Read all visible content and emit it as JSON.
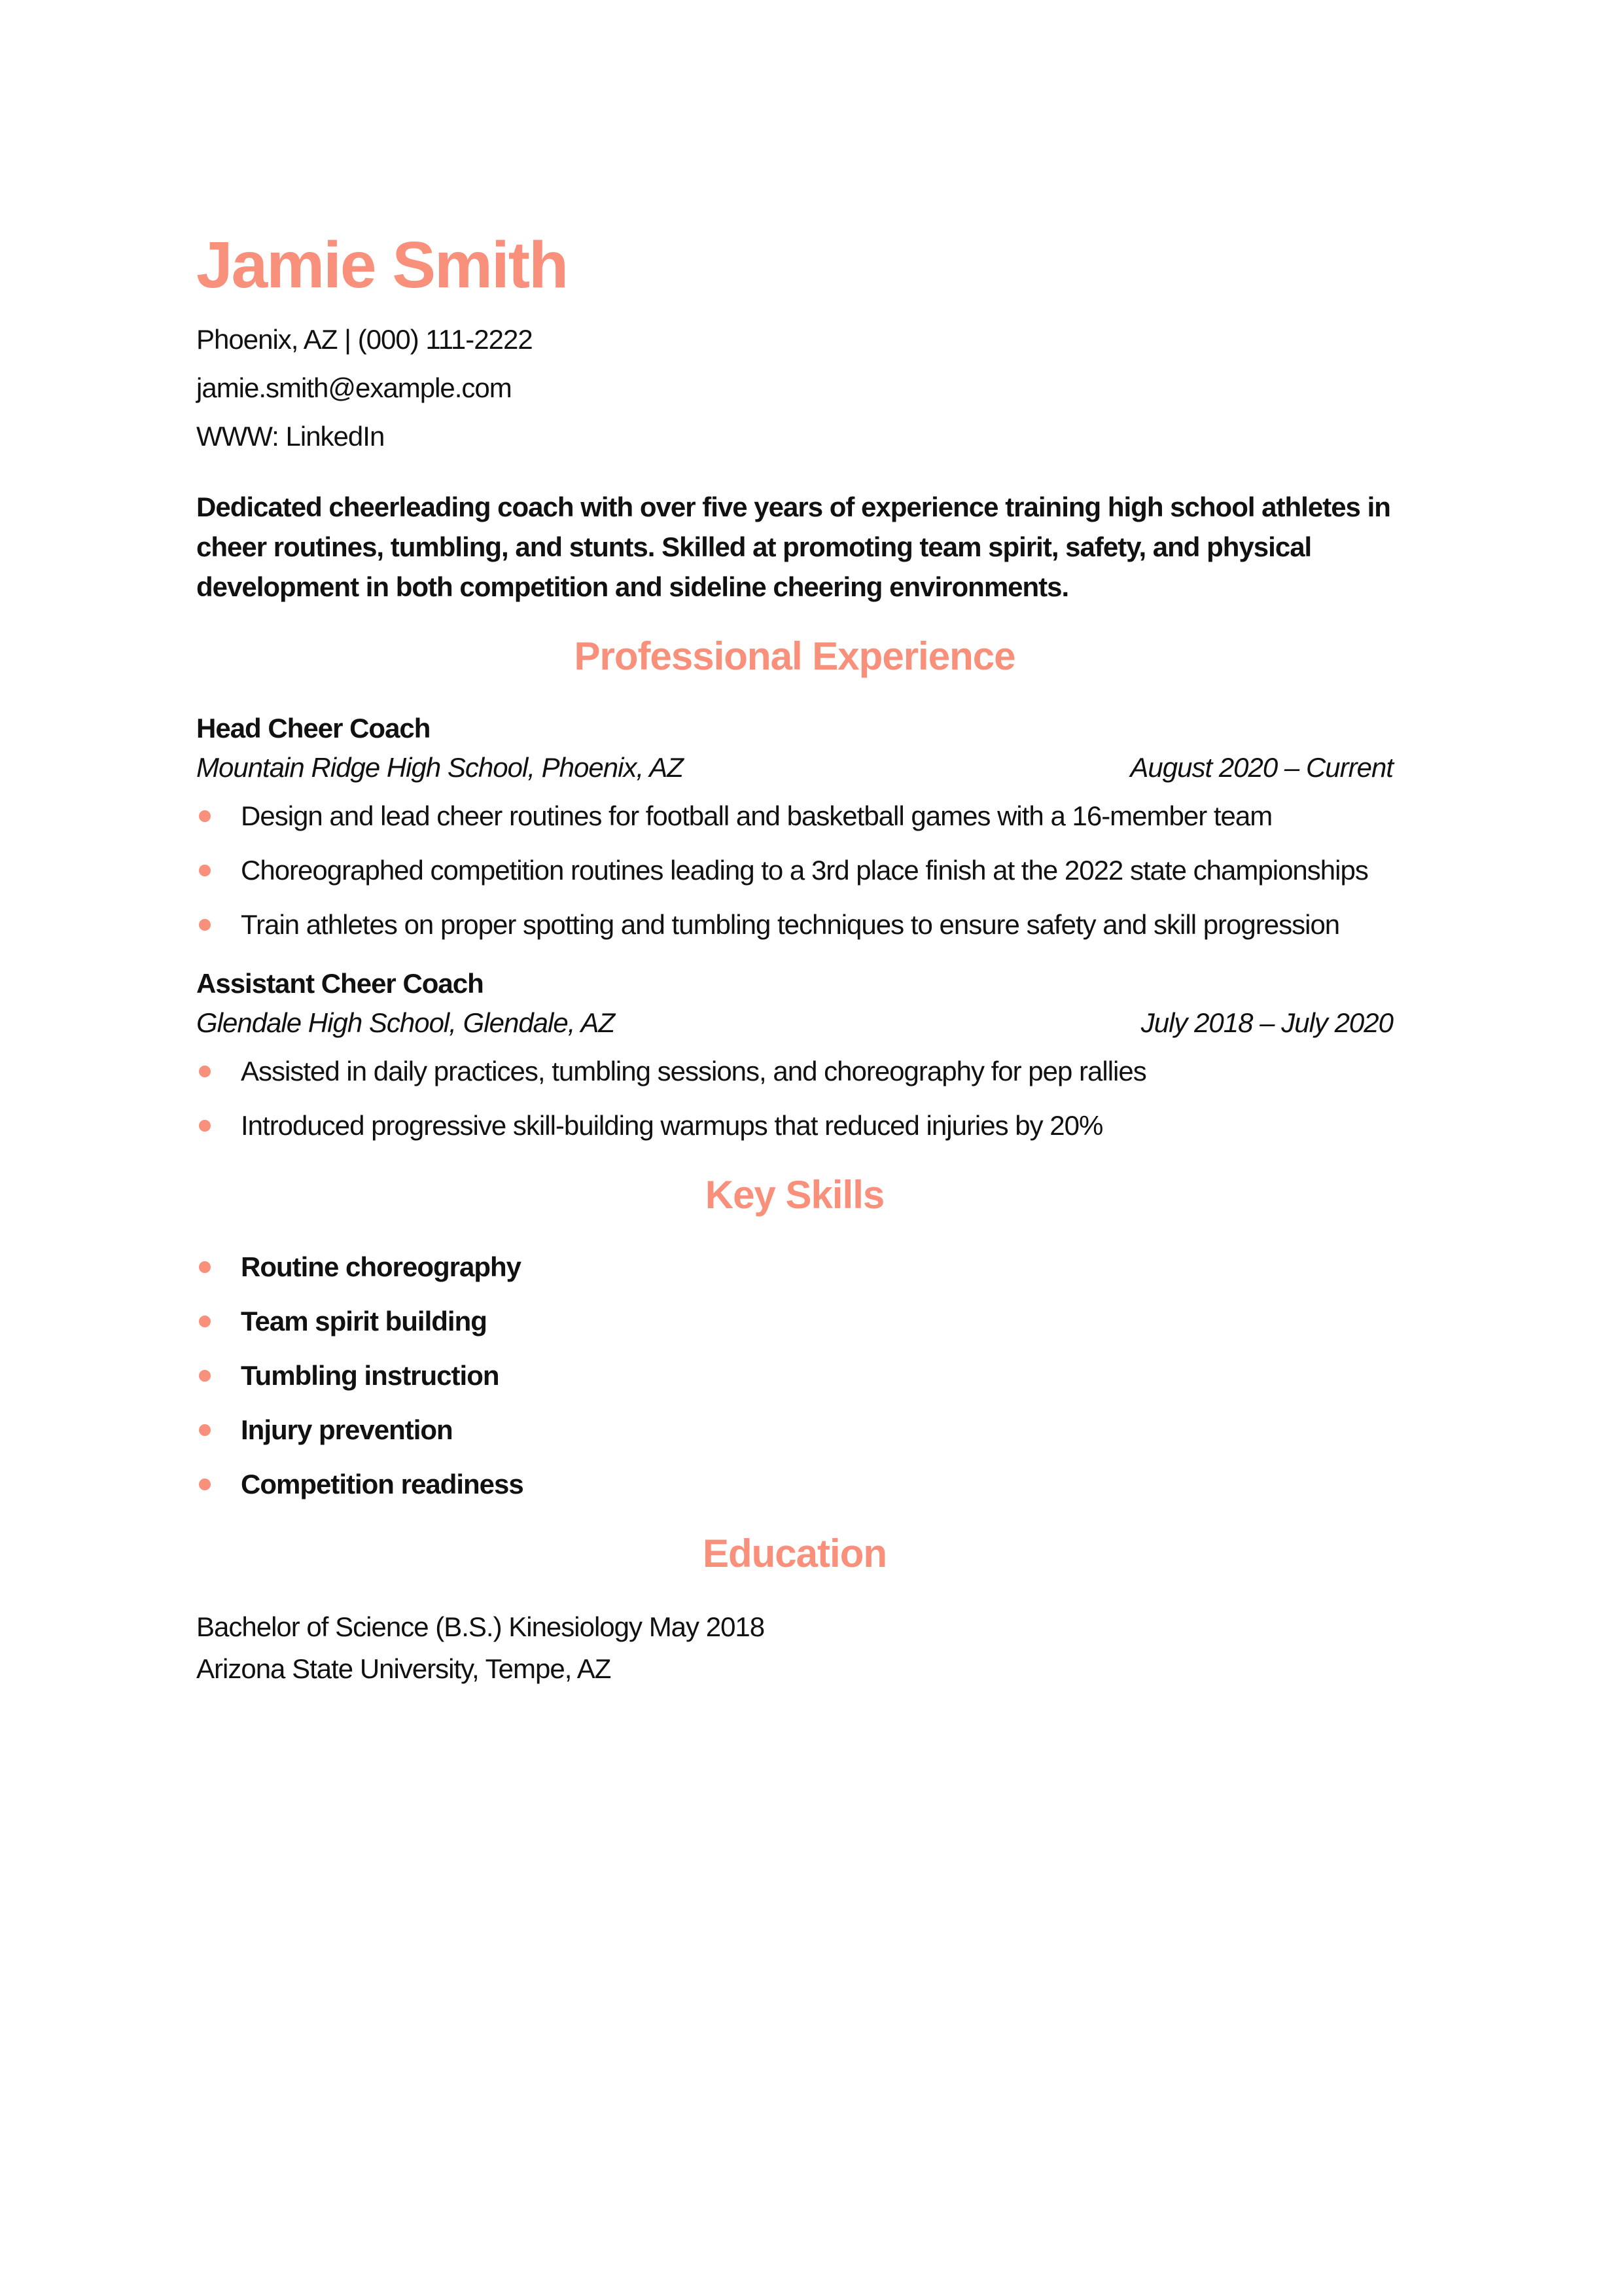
{
  "colors": {
    "accent": "#F8907B",
    "text": "#111111"
  },
  "header": {
    "name": "Jamie Smith",
    "contact": {
      "location_phone": "Phoenix, AZ | (000) 111-2222",
      "email": "jamie.smith@example.com",
      "website": "WWW: LinkedIn"
    }
  },
  "summary": "Dedicated cheerleading coach with over five years of experience training high school athletes in cheer routines, tumbling, and stunts. Skilled at promoting team spirit, safety, and physical development in both competition and sideline cheering environments.",
  "sections": {
    "experience": {
      "title": "Professional Experience",
      "jobs": [
        {
          "title": "Head Cheer Coach",
          "employer": "Mountain Ridge High School, Phoenix, AZ",
          "dates": "August 2020 – Current",
          "bullets": [
            "Design and lead cheer routines for football and basketball games with a 16-member team",
            "Choreographed competition routines leading to a 3rd place finish at the 2022 state championships",
            "Train athletes on proper spotting and tumbling techniques to ensure safety and skill progression"
          ]
        },
        {
          "title": "Assistant Cheer Coach",
          "employer": "Glendale High School, Glendale, AZ",
          "dates": "July 2018 – July 2020",
          "bullets": [
            "Assisted in daily practices, tumbling sessions, and choreography for pep rallies",
            "Introduced progressive skill-building warmups that reduced injuries by 20%"
          ]
        }
      ]
    },
    "skills": {
      "title": "Key Skills",
      "items": [
        "Routine choreography",
        "Team spirit building",
        "Tumbling instruction",
        "Injury prevention",
        "Competition readiness"
      ]
    },
    "education": {
      "title": "Education",
      "degree": "Bachelor of Science (B.S.) Kinesiology May 2018",
      "school": "Arizona State University, Tempe, AZ"
    }
  }
}
